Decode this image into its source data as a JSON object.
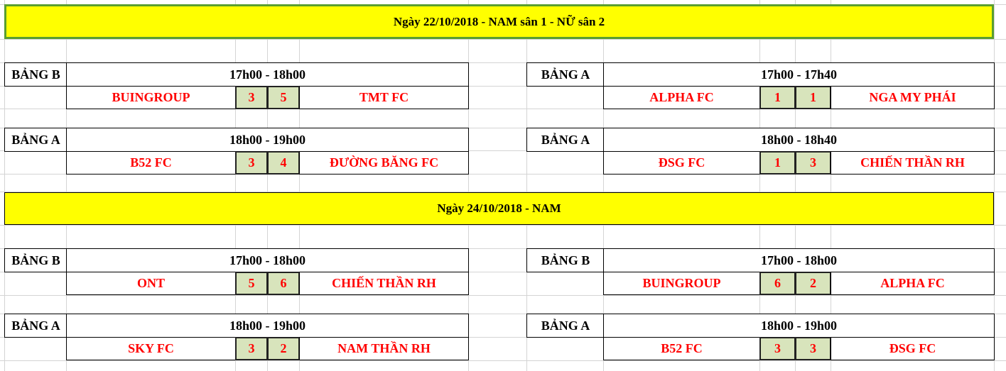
{
  "days": [
    {
      "title": "Ngày 22/10/2018 - NAM  sân 1 - NỮ  sân 2"
    },
    {
      "title": "Ngày 24/10/2018 - NAM"
    }
  ],
  "matches": [
    {
      "group": "BẢNG B",
      "time": "17h00 - 18h00",
      "team1": "BUINGROUP",
      "score1": "3",
      "score2": "5",
      "team2": "TMT FC"
    },
    {
      "group": "BẢNG A",
      "time": "17h00 - 17h40",
      "team1": "ALPHA FC",
      "score1": "1",
      "score2": "1",
      "team2": "NGA MY PHÁI"
    },
    {
      "group": "BẢNG A",
      "time": "18h00 - 19h00",
      "team1": "B52 FC",
      "score1": "3",
      "score2": "4",
      "team2": "ĐƯỜNG BĂNG FC"
    },
    {
      "group": "BẢNG A",
      "time": "18h00 - 18h40",
      "team1": "ĐSG FC",
      "score1": "1",
      "score2": "3",
      "team2": "CHIẾN THẦN RH"
    },
    {
      "group": "BẢNG B",
      "time": "17h00 - 18h00",
      "team1": "ONT",
      "score1": "5",
      "score2": "6",
      "team2": "CHIẾN THẦN RH"
    },
    {
      "group": "BẢNG B",
      "time": "17h00 - 18h00",
      "team1": "BUINGROUP",
      "score1": "6",
      "score2": "2",
      "team2": "ALPHA FC"
    },
    {
      "group": "BẢNG A",
      "time": "18h00 - 19h00",
      "team1": "SKY FC",
      "score1": "3",
      "score2": "2",
      "team2": "NAM THẦN RH"
    },
    {
      "group": "BẢNG A",
      "time": "18h00 - 19h00",
      "team1": "B52 FC",
      "score1": "3",
      "score2": "3",
      "team2": "ĐSG FC"
    }
  ],
  "colors": {
    "band": "#ffff00",
    "team_text": "#ff0000",
    "score_fill": "#d8e4bc"
  }
}
